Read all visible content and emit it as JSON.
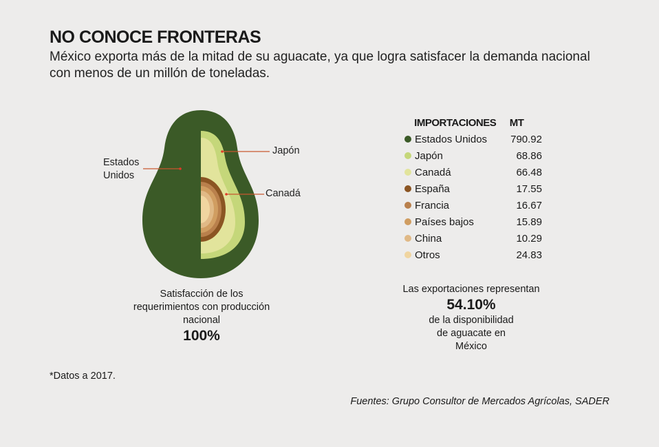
{
  "title": "NO CONOCE FRONTERAS",
  "subtitle": "México exporta más de la mitad de su aguacate, ya que logra satisfacer la demanda nacional con menos de un millón de toneladas.",
  "avocado_labels": {
    "left": "Estados Unidos",
    "japon": "Japón",
    "canada": "Canadá"
  },
  "left_note": {
    "text": "Satisfacción de los requerimientos con producción nacional",
    "value": "100%"
  },
  "right_note": {
    "text1": "Las exportaciones representan",
    "value": "54.10%",
    "text2": "de la disponibilidad de aguacate en México"
  },
  "footnote": "*Datos a 2017.",
  "source": "Fuentes: Grupo Consultor de Mercados Agrícolas, SADER",
  "chart_data": {
    "type": "table",
    "title": "IMPORTACIONES",
    "value_header": "MT",
    "categories": [
      "Estados Unidos",
      "Japón",
      "Canadá",
      "España",
      "Francia",
      "Países bajos",
      "China",
      "Otros"
    ],
    "values_text": [
      "790.92",
      "68.86",
      "66.48",
      "17.55",
      "16.67",
      "15.89",
      "10.29",
      "24.83"
    ],
    "values": [
      790.92,
      68.86,
      66.48,
      17.55,
      16.67,
      15.89,
      10.29,
      24.83
    ],
    "colors": [
      "#3b5a27",
      "#c5d77a",
      "#e2e49c",
      "#8b5523",
      "#b9804c",
      "#d09d61",
      "#e0b986",
      "#f0d5a0"
    ]
  }
}
